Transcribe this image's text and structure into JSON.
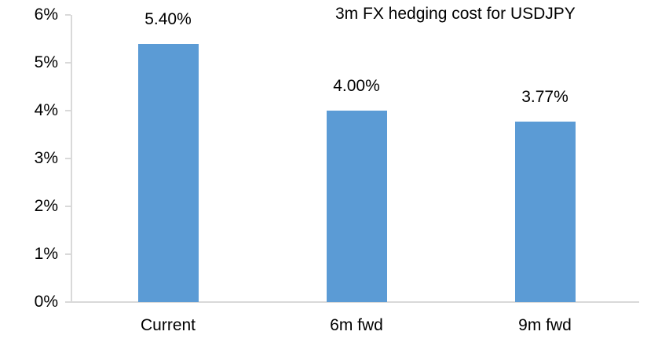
{
  "chart_data": {
    "type": "bar",
    "title": "3m FX hedging cost for USDJPY",
    "categories": [
      "Current",
      "6m fwd",
      "9m fwd"
    ],
    "values": [
      5.4,
      4.0,
      3.77
    ],
    "data_labels": [
      "5.40%",
      "4.00%",
      "3.77%"
    ],
    "xlabel": "",
    "ylabel": "",
    "ylim": [
      0,
      6
    ],
    "ytick_step": 1,
    "ytick_labels": [
      "0%",
      "1%",
      "2%",
      "3%",
      "4%",
      "5%",
      "6%"
    ],
    "grid": false,
    "legend": false,
    "bar_color": "#5B9BD5",
    "axis_color": "#D9D9D9",
    "text_color": "#000000"
  }
}
